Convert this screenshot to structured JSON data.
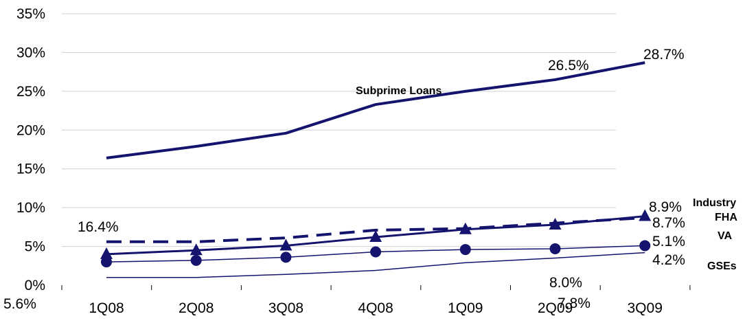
{
  "chart_data": {
    "type": "line",
    "categories": [
      "1Q08",
      "2Q08",
      "3Q08",
      "4Q08",
      "1Q09",
      "2Q09",
      "3Q09"
    ],
    "ylim": [
      0,
      35
    ],
    "y_ticks": [
      "0%",
      "5%",
      "10%",
      "15%",
      "20%",
      "25%",
      "30%",
      "35%"
    ],
    "grid": "horizontal",
    "line_color": "#14146e",
    "series": [
      {
        "name": "Subprime  Loans",
        "style": "thick-solid",
        "values": [
          16.4,
          17.9,
          19.6,
          23.3,
          25.0,
          26.5,
          28.7
        ]
      },
      {
        "name": "Industry",
        "style": "dashed",
        "values": [
          5.6,
          5.6,
          6.1,
          7.1,
          7.3,
          8.0,
          8.7
        ]
      },
      {
        "name": "FHA",
        "style": "solid-triangles",
        "values": [
          4.0,
          4.5,
          5.1,
          6.2,
          7.2,
          7.8,
          8.9
        ]
      },
      {
        "name": "VA",
        "style": "thin-circles",
        "values": [
          3.0,
          3.2,
          3.6,
          4.3,
          4.6,
          4.7,
          5.1
        ]
      },
      {
        "name": "GSEs",
        "style": "thin-solid",
        "values": [
          1.0,
          1.0,
          1.4,
          1.9,
          2.9,
          3.5,
          4.2
        ]
      }
    ],
    "data_labels": [
      "16.4%",
      "26.5%",
      "28.7%",
      "8.9%",
      "8.7%",
      "5.1%",
      "4.2%",
      "5.6%",
      "8.0%",
      "7.8%"
    ]
  }
}
